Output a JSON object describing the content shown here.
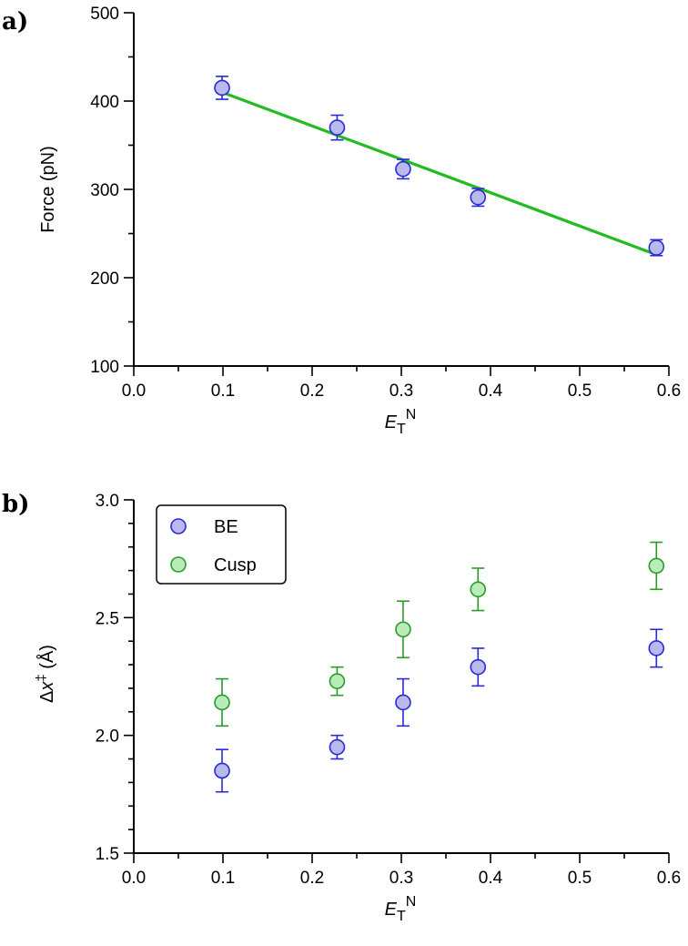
{
  "chart_data": [
    {
      "panel_label": "a)",
      "type": "scatter",
      "xlabel_main": "E",
      "xlabel_sub": "T",
      "xlabel_sup": "N",
      "ylabel": "Force (pN)",
      "xlim": [
        0.0,
        0.6
      ],
      "ylim": [
        100,
        500
      ],
      "x_ticks": [
        "0.0",
        "0.1",
        "0.2",
        "0.3",
        "0.4",
        "0.5",
        "0.6"
      ],
      "y_ticks": [
        "100",
        "200",
        "300",
        "400",
        "500"
      ],
      "grid": false,
      "series": [
        {
          "color": "#2a2ad6",
          "fill": "#b9b9ee",
          "x": [
            0.099,
            0.228,
            0.302,
            0.386,
            0.586
          ],
          "y": [
            415,
            370,
            323,
            291,
            234
          ],
          "err": [
            13,
            14,
            11,
            10,
            9
          ]
        }
      ],
      "fit_line": {
        "color": "#22bb22",
        "x": [
          0.099,
          0.586
        ],
        "y": [
          410,
          226
        ]
      }
    },
    {
      "panel_label": "b)",
      "type": "scatter",
      "xlabel_main": "E",
      "xlabel_sub": "T",
      "xlabel_sup": "N",
      "ylabel_delta": "Δ",
      "ylabel_x": "x",
      "ylabel_dagger": "‡",
      "ylabel_unit": " (Å)",
      "xlim": [
        0.0,
        0.6
      ],
      "ylim": [
        1.5,
        3.0
      ],
      "x_ticks": [
        "0.0",
        "0.1",
        "0.2",
        "0.3",
        "0.4",
        "0.5",
        "0.6"
      ],
      "y_ticks": [
        "1.5",
        "2.0",
        "2.5",
        "3.0"
      ],
      "grid": false,
      "legend_position": "top-left",
      "series": [
        {
          "name": "BE",
          "color": "#2a2ad6",
          "fill": "#b9b9ee",
          "x": [
            0.099,
            0.228,
            0.302,
            0.386,
            0.586
          ],
          "y": [
            1.85,
            1.95,
            2.14,
            2.29,
            2.37
          ],
          "err": [
            0.09,
            0.05,
            0.1,
            0.08,
            0.08
          ]
        },
        {
          "name": "Cusp",
          "color": "#2a9a2a",
          "fill": "#b9ecb9",
          "x": [
            0.099,
            0.228,
            0.302,
            0.386,
            0.586
          ],
          "y": [
            2.14,
            2.23,
            2.45,
            2.62,
            2.72
          ],
          "err": [
            0.1,
            0.06,
            0.12,
            0.09,
            0.1
          ]
        }
      ]
    }
  ]
}
